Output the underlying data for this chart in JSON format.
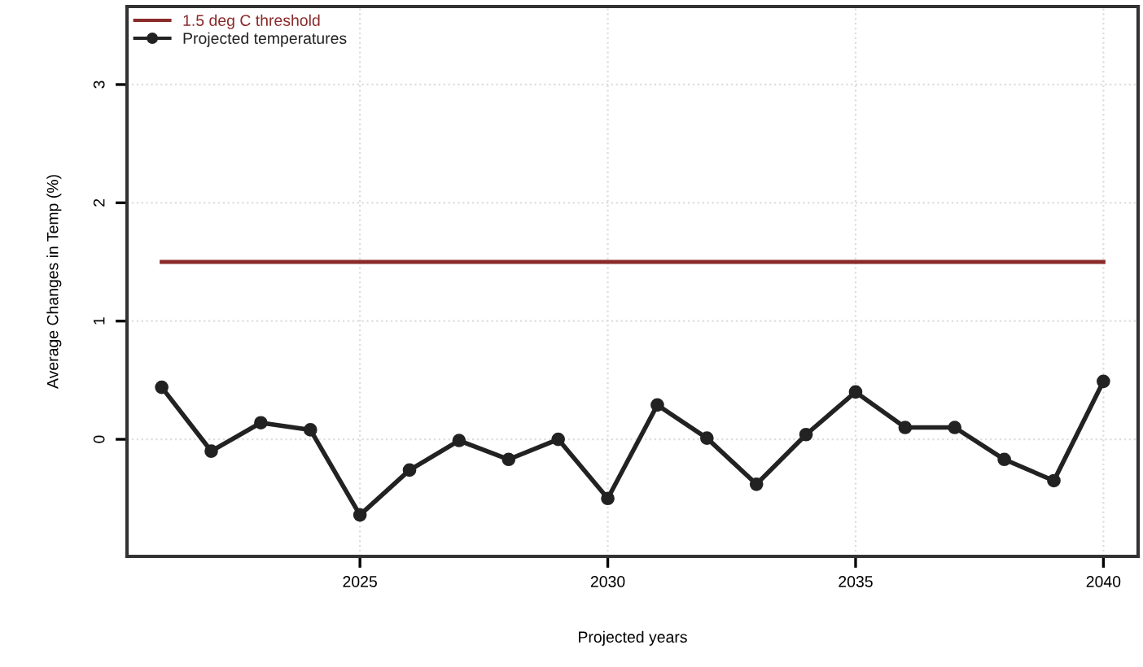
{
  "chart_data": {
    "type": "line",
    "xlabel": "Projected years",
    "ylabel": "Average Changes in Temp (%)",
    "x": [
      2021,
      2022,
      2023,
      2024,
      2025,
      2026,
      2027,
      2028,
      2029,
      2030,
      2031,
      2032,
      2033,
      2034,
      2035,
      2036,
      2037,
      2038,
      2039,
      2040
    ],
    "series": [
      {
        "name": "1.5 deg C threshold",
        "color": "#8b2a2a",
        "x": [
          2021,
          2040
        ],
        "values": [
          1.5,
          1.5
        ],
        "marker": "none"
      },
      {
        "name": "Projected temperatures",
        "color": "#222222",
        "marker": "circle",
        "values": [
          0.44,
          -0.1,
          0.14,
          0.08,
          -0.64,
          -0.26,
          -0.01,
          -0.17,
          0.0,
          -0.5,
          0.29,
          0.01,
          -0.38,
          0.04,
          0.4,
          0.1,
          0.1,
          -0.17,
          -0.35,
          0.49
        ]
      }
    ],
    "xlim": [
      2020.3,
      2040.7
    ],
    "xticks": [
      2025,
      2030,
      2035,
      2040
    ],
    "ylim": [
      -0.99,
      3.66
    ],
    "yticks": [
      0,
      1,
      2,
      3
    ],
    "grid": true,
    "legend": "top left",
    "line_style": "solid"
  }
}
